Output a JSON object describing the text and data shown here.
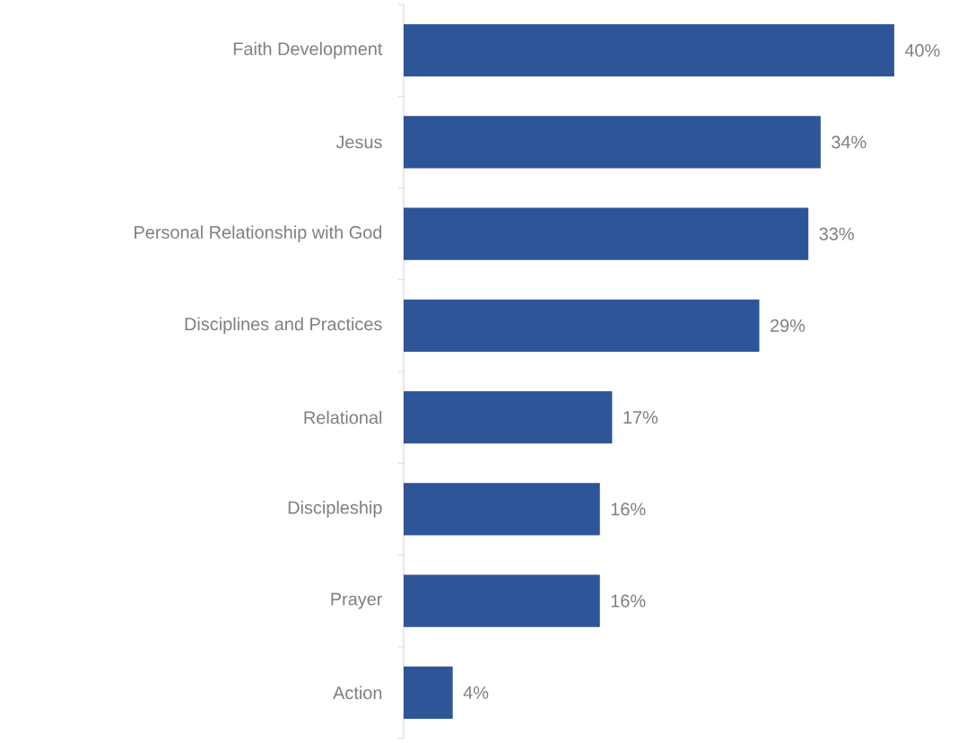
{
  "chart_data": {
    "type": "bar",
    "orientation": "horizontal",
    "categories": [
      "Faith Development",
      "Jesus",
      "Personal Relationship with God",
      "Disciplines and Practices",
      "Relational",
      "Discipleship",
      "Prayer",
      "Action"
    ],
    "values": [
      40,
      34,
      33,
      29,
      17,
      16,
      16,
      4
    ],
    "value_labels": [
      "40%",
      "34%",
      "33%",
      "29%",
      "17%",
      "16%",
      "16%",
      "4%"
    ],
    "color": "#2e5597"
  }
}
